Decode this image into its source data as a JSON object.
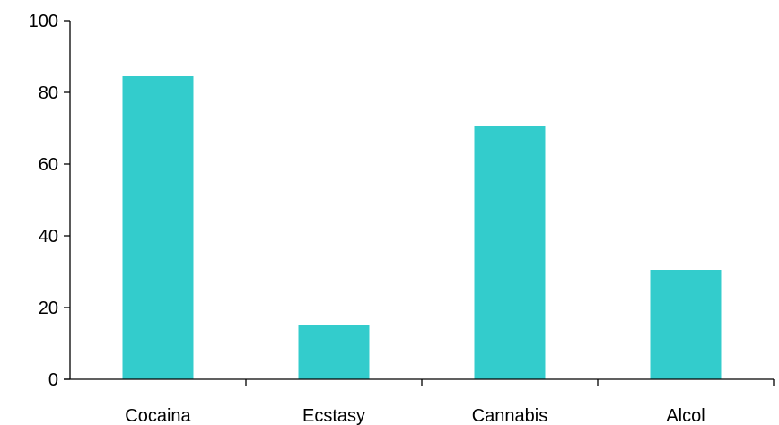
{
  "chart_data": {
    "type": "bar",
    "title": "",
    "xlabel": "",
    "ylabel": "",
    "categories": [
      "Cocaina",
      "Ecstasy",
      "Cannabis",
      "Alcol"
    ],
    "values": [
      84.5,
      15,
      70.5,
      30.5
    ],
    "ylim": [
      0,
      100
    ],
    "yticks": [
      0,
      20,
      40,
      60,
      80,
      100
    ],
    "ytick_labels": [
      "0",
      "20",
      "40",
      "60",
      "80",
      "100"
    ],
    "grid": false,
    "legend": "none",
    "colors": {
      "bar": "#33CCCC",
      "axis": "#000000",
      "text": "#000000"
    }
  }
}
